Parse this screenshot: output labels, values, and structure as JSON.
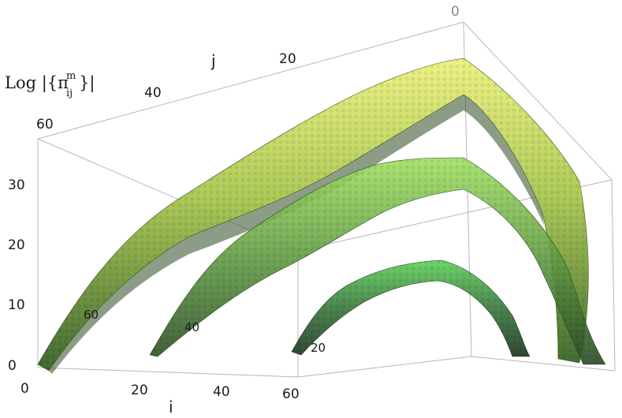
{
  "chart_data": {
    "type": "surface3d",
    "title": "",
    "zlabel": "Log |{π",
    "zlabel_sup": "m",
    "zlabel_sub": "ij",
    "zlabel_close": "}|",
    "xlabel": "i",
    "ylabel": "j",
    "i_ticks": [
      "0",
      "20",
      "40",
      "60"
    ],
    "j_ticks": [
      "60",
      "40",
      "20",
      "0"
    ],
    "z_ticks": [
      "0",
      "10",
      "20",
      "30"
    ],
    "zlim": [
      0,
      40
    ],
    "i_range": [
      0,
      60
    ],
    "j_range": [
      0,
      60
    ],
    "series": [
      {
        "name": "60",
        "m": 60,
        "peak_log": 36,
        "color_top": "#e6f06a",
        "color_mid": "#9cc43a",
        "color_dark": "#2e5a1e"
      },
      {
        "name": "40",
        "m": 40,
        "peak_log": 24,
        "color_top": "#9be05a",
        "color_mid": "#5e9a3c",
        "color_dark": "#2a4a24"
      },
      {
        "name": "20",
        "m": 20,
        "peak_log": 12,
        "color_top": "#5fcf58",
        "color_mid": "#3f7a3e",
        "color_dark": "#223a24"
      }
    ],
    "grid": false,
    "legend": "none"
  }
}
